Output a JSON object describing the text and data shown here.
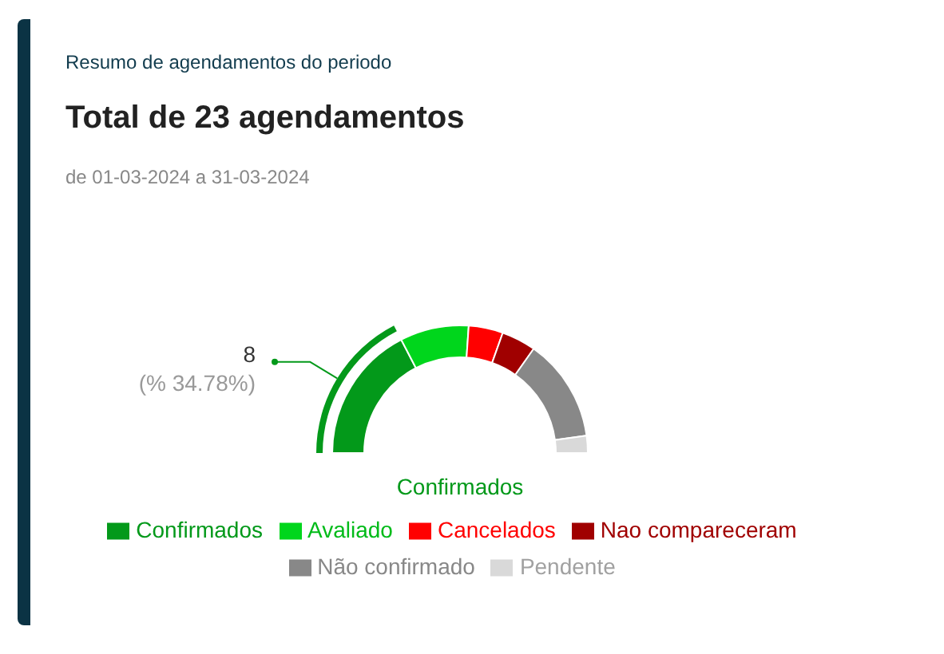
{
  "chart_data": {
    "type": "donut",
    "title": "Total de 23 agendamentos",
    "subtitle": "de 01-03-2024 a 31-03-2024",
    "annotations": [
      "Resumo de agendamentos do periodo"
    ],
    "categories": [
      "Confirmados",
      "Avaliado",
      "Cancelados",
      "Nao compareceram",
      "Não confirmado",
      "Pendente"
    ],
    "values": [
      8,
      4,
      2,
      2,
      6,
      1
    ],
    "colors": [
      "#03991a",
      "#00d61c",
      "#ff0000",
      "#a00000",
      "#888888",
      "#d9d9d9"
    ],
    "value_labels": [
      "8\n(% 34.78%)",
      null,
      null,
      null,
      null,
      null
    ],
    "legend": "bottom"
  }
}
